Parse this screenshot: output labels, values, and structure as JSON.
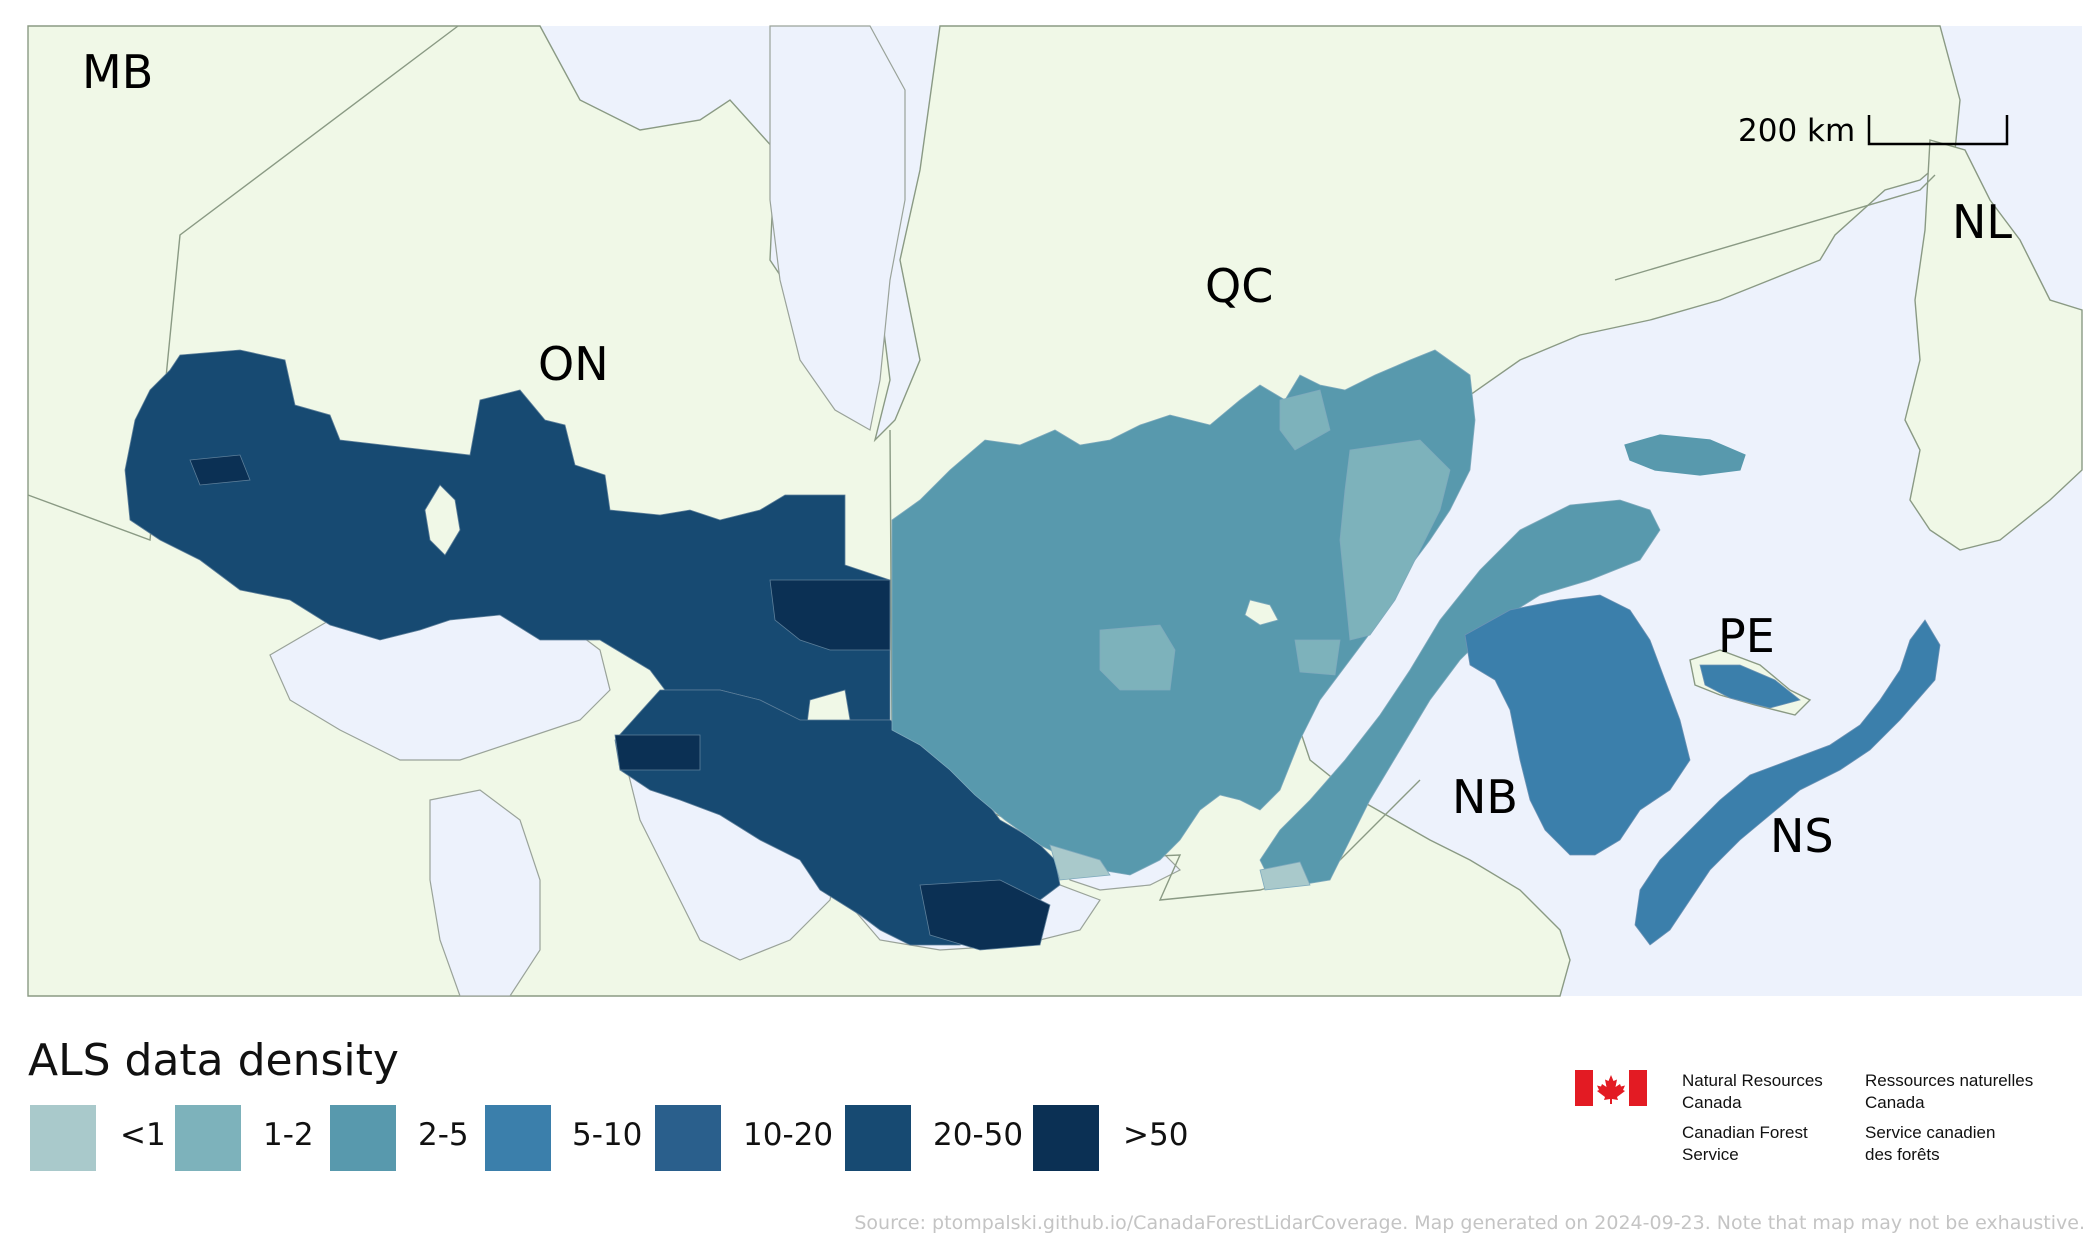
{
  "map": {
    "province_labels": [
      "MB",
      "ON",
      "QC",
      "NL",
      "PE",
      "NB",
      "NS"
    ],
    "scale_bar": {
      "label": "200 km"
    }
  },
  "colors": {
    "water": "#edf2fc",
    "land": "#f0f8e7",
    "density_classes": [
      "#a9c9cb",
      "#7db2bb",
      "#5899ad",
      "#3b7fab",
      "#2a5f8c",
      "#174a72",
      "#0b3054"
    ]
  },
  "legend": {
    "title": "ALS data density",
    "items": [
      {
        "label": "<1",
        "color": "#a9c9cb"
      },
      {
        "label": "1-2",
        "color": "#7db2bb"
      },
      {
        "label": "2-5",
        "color": "#5899ad"
      },
      {
        "label": "5-10",
        "color": "#3b7fab"
      },
      {
        "label": "10-20",
        "color": "#2a5f8c"
      },
      {
        "label": "20-50",
        "color": "#174a72"
      },
      {
        "label": ">50",
        "color": "#0b3054"
      }
    ]
  },
  "logo": {
    "english": [
      "Natural Resources",
      "Canada",
      "Canadian Forest",
      "Service"
    ],
    "french": [
      "Ressources naturelles",
      "Canada",
      "Service canadien",
      "des forêts"
    ]
  },
  "source_note": "Source: ptompalski.github.io/CanadaForestLidarCoverage. Map generated on 2024-09-23. Note that map may not be exhaustive."
}
